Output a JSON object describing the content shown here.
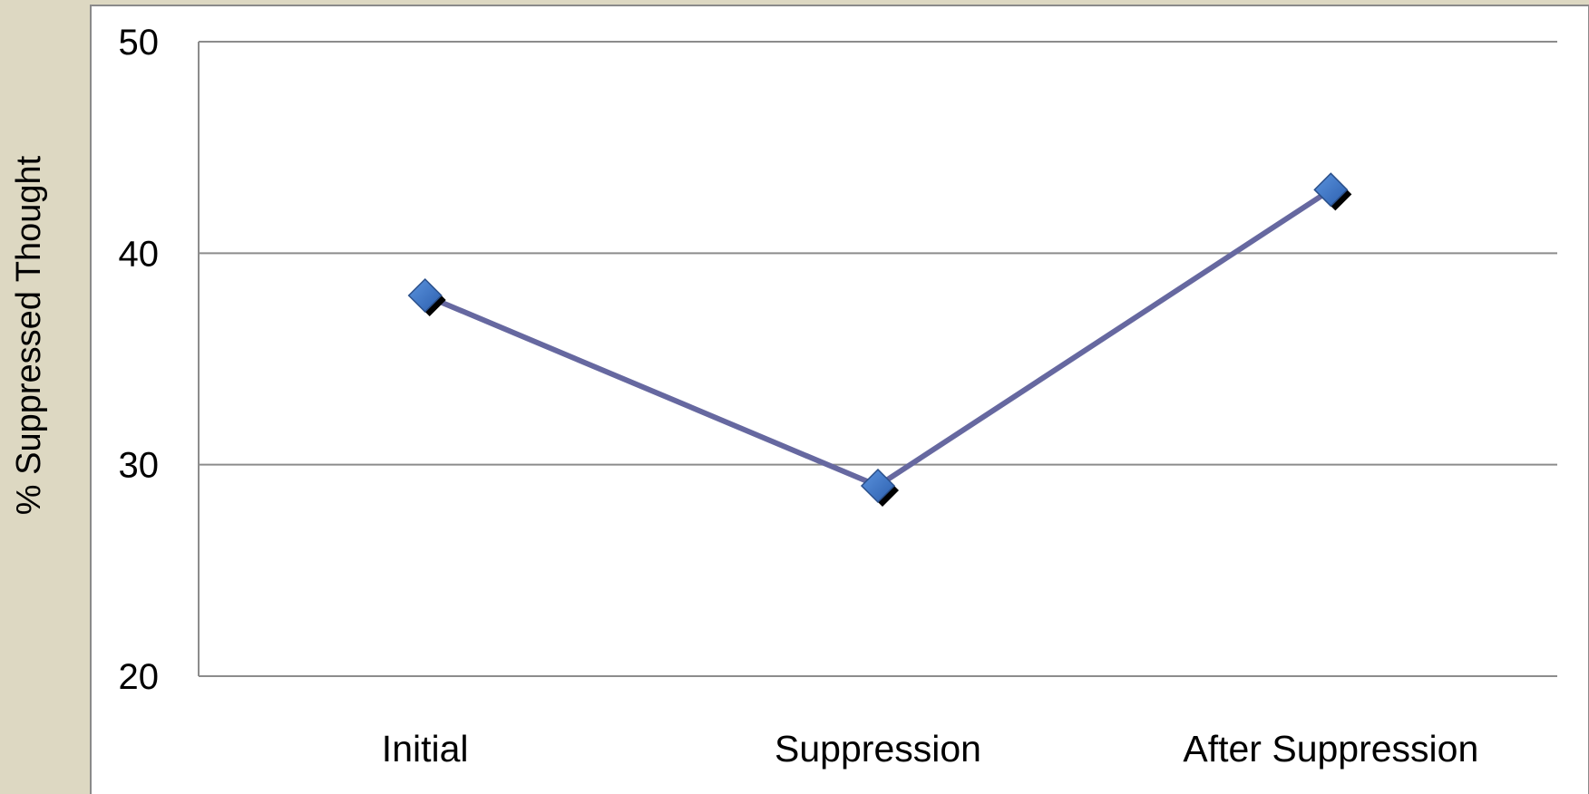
{
  "chart_data": {
    "type": "line",
    "categories": [
      "Initial",
      "Suppression",
      "After Suppression"
    ],
    "series": [
      {
        "values": [
          38,
          29,
          43
        ]
      }
    ],
    "xlabel": "",
    "ylabel": "% Suppressed Thought",
    "ylim": [
      20,
      50
    ],
    "yticks": [
      20,
      30,
      40,
      50
    ],
    "grid": "horizontal",
    "legend": "none",
    "line_color": "#6668a0",
    "marker": "diamond",
    "marker_color": "#3a6fc0",
    "background": "#ddd8c2",
    "plot_background": "#ffffff"
  }
}
